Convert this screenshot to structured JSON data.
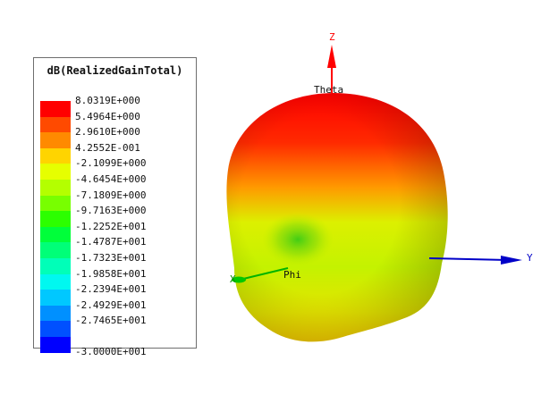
{
  "legend": {
    "title": "dB(RealizedGainTotal)",
    "entries": [
      {
        "label": "8.0319E+000",
        "color": "#ff0000"
      },
      {
        "label": "5.4964E+000",
        "color": "#ff4a00"
      },
      {
        "label": "2.9610E+000",
        "color": "#ff8a00"
      },
      {
        "label": "4.2552E-001",
        "color": "#ffd400"
      },
      {
        "label": "-2.1099E+000",
        "color": "#e6ff00"
      },
      {
        "label": "-4.6454E+000",
        "color": "#b4ff00"
      },
      {
        "label": "-7.1809E+000",
        "color": "#78ff00"
      },
      {
        "label": "-9.7163E+000",
        "color": "#2cff00"
      },
      {
        "label": "-1.2252E+001",
        "color": "#00ff3a"
      },
      {
        "label": "-1.4787E+001",
        "color": "#00ff78"
      },
      {
        "label": "-1.7323E+001",
        "color": "#00ffb8"
      },
      {
        "label": "-1.9858E+001",
        "color": "#00f8f0"
      },
      {
        "label": "-2.2394E+001",
        "color": "#00c8ff"
      },
      {
        "label": "-2.4929E+001",
        "color": "#0090ff"
      },
      {
        "label": "-2.7465E+001",
        "color": "#0050ff"
      },
      {
        "label": "-3.0000E+001",
        "color": "#0000ff"
      }
    ]
  },
  "axes": {
    "z_label": "Z",
    "y_label": "Y",
    "x_label": "X",
    "theta_label": "Theta",
    "phi_label": "Phi",
    "z_color": "#ff0000",
    "y_color": "#0000c8",
    "x_color": "#00b400"
  },
  "pattern": {
    "type": "3D polar radiation pattern",
    "top_color": "#ff0000",
    "mid_color": "#c8ff00",
    "bottom_color": "#ffd800"
  }
}
